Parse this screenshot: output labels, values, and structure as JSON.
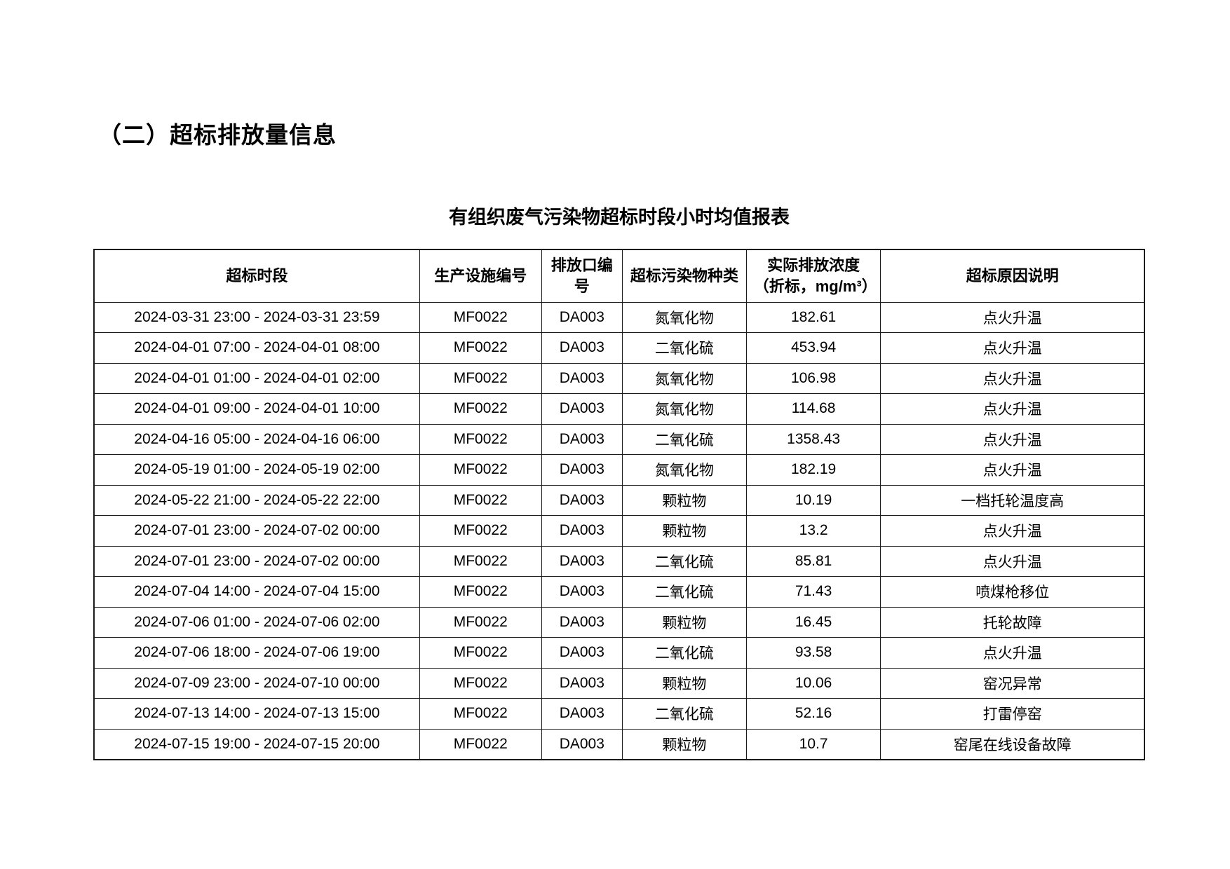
{
  "section_heading": "（二）超标排放量信息",
  "table_title": "有组织废气污染物超标时段小时均值报表",
  "table": {
    "columns": [
      "超标时段",
      "生产设施编号",
      "排放口编号",
      "超标污染物种类",
      "实际排放浓度（折标，mg/m³）",
      "超标原因说明"
    ],
    "column_widths_pct": [
      31.0,
      11.6,
      7.7,
      11.8,
      12.8,
      25.1
    ],
    "rows": [
      [
        "2024-03-31 23:00 - 2024-03-31 23:59",
        "MF0022",
        "DA003",
        "氮氧化物",
        "182.61",
        "点火升温"
      ],
      [
        "2024-04-01 07:00 - 2024-04-01 08:00",
        "MF0022",
        "DA003",
        "二氧化硫",
        "453.94",
        "点火升温"
      ],
      [
        "2024-04-01 01:00 - 2024-04-01 02:00",
        "MF0022",
        "DA003",
        "氮氧化物",
        "106.98",
        "点火升温"
      ],
      [
        "2024-04-01 09:00 - 2024-04-01 10:00",
        "MF0022",
        "DA003",
        "氮氧化物",
        "114.68",
        "点火升温"
      ],
      [
        "2024-04-16 05:00 - 2024-04-16 06:00",
        "MF0022",
        "DA003",
        "二氧化硫",
        "1358.43",
        "点火升温"
      ],
      [
        "2024-05-19 01:00 - 2024-05-19 02:00",
        "MF0022",
        "DA003",
        "氮氧化物",
        "182.19",
        "点火升温"
      ],
      [
        "2024-05-22 21:00 - 2024-05-22 22:00",
        "MF0022",
        "DA003",
        "颗粒物",
        "10.19",
        "一档托轮温度高"
      ],
      [
        "2024-07-01 23:00 - 2024-07-02 00:00",
        "MF0022",
        "DA003",
        "颗粒物",
        "13.2",
        "点火升温"
      ],
      [
        "2024-07-01 23:00 - 2024-07-02 00:00",
        "MF0022",
        "DA003",
        "二氧化硫",
        "85.81",
        "点火升温"
      ],
      [
        "2024-07-04 14:00 - 2024-07-04 15:00",
        "MF0022",
        "DA003",
        "二氧化硫",
        "71.43",
        "喷煤枪移位"
      ],
      [
        "2024-07-06 01:00 - 2024-07-06 02:00",
        "MF0022",
        "DA003",
        "颗粒物",
        "16.45",
        "托轮故障"
      ],
      [
        "2024-07-06 18:00 - 2024-07-06 19:00",
        "MF0022",
        "DA003",
        "二氧化硫",
        "93.58",
        "点火升温"
      ],
      [
        "2024-07-09 23:00 - 2024-07-10 00:00",
        "MF0022",
        "DA003",
        "颗粒物",
        "10.06",
        "窑况异常"
      ],
      [
        "2024-07-13 14:00 - 2024-07-13 15:00",
        "MF0022",
        "DA003",
        "二氧化硫",
        "52.16",
        "打雷停窑"
      ],
      [
        "2024-07-15 19:00 - 2024-07-15 20:00",
        "MF0022",
        "DA003",
        "颗粒物",
        "10.7",
        "窑尾在线设备故障"
      ]
    ]
  },
  "colors": {
    "text": "#000000",
    "border": "#1a1a1a",
    "background": "#ffffff"
  }
}
